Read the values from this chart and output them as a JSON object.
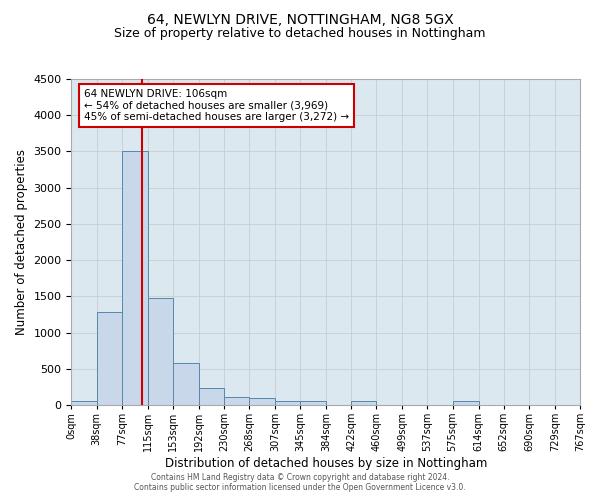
{
  "title1": "64, NEWLYN DRIVE, NOTTINGHAM, NG8 5GX",
  "title2": "Size of property relative to detached houses in Nottingham",
  "xlabel": "Distribution of detached houses by size in Nottingham",
  "ylabel": "Number of detached properties",
  "footer1": "Contains HM Land Registry data © Crown copyright and database right 2024.",
  "footer2": "Contains public sector information licensed under the Open Government Licence v3.0.",
  "bin_edges": [
    0,
    38,
    77,
    115,
    153,
    192,
    230,
    268,
    307,
    345,
    384,
    422,
    460,
    499,
    537,
    575,
    614,
    652,
    690,
    729,
    767
  ],
  "bar_heights": [
    50,
    1280,
    3500,
    1480,
    575,
    240,
    115,
    90,
    60,
    50,
    0,
    60,
    0,
    0,
    0,
    50,
    0,
    0,
    0,
    0
  ],
  "bar_color": "#c8d8ea",
  "bar_edgecolor": "#5588aa",
  "vline_x": 106,
  "vline_color": "#cc0000",
  "annotation_line1": "64 NEWLYN DRIVE: 106sqm",
  "annotation_line2": "← 54% of detached houses are smaller (3,969)",
  "annotation_line3": "45% of semi-detached houses are larger (3,272) →",
  "annotation_box_color": "#ffffff",
  "annotation_box_edgecolor": "#cc0000",
  "ylim": [
    0,
    4500
  ],
  "yticks": [
    0,
    500,
    1000,
    1500,
    2000,
    2500,
    3000,
    3500,
    4000,
    4500
  ],
  "grid_color": "#cccccc",
  "plot_bg_color": "#dce8f0",
  "title1_fontsize": 10,
  "title2_fontsize": 9,
  "xlabel_fontsize": 8.5,
  "ylabel_fontsize": 8.5,
  "tick_label_fontsize": 7,
  "ytick_fontsize": 8
}
